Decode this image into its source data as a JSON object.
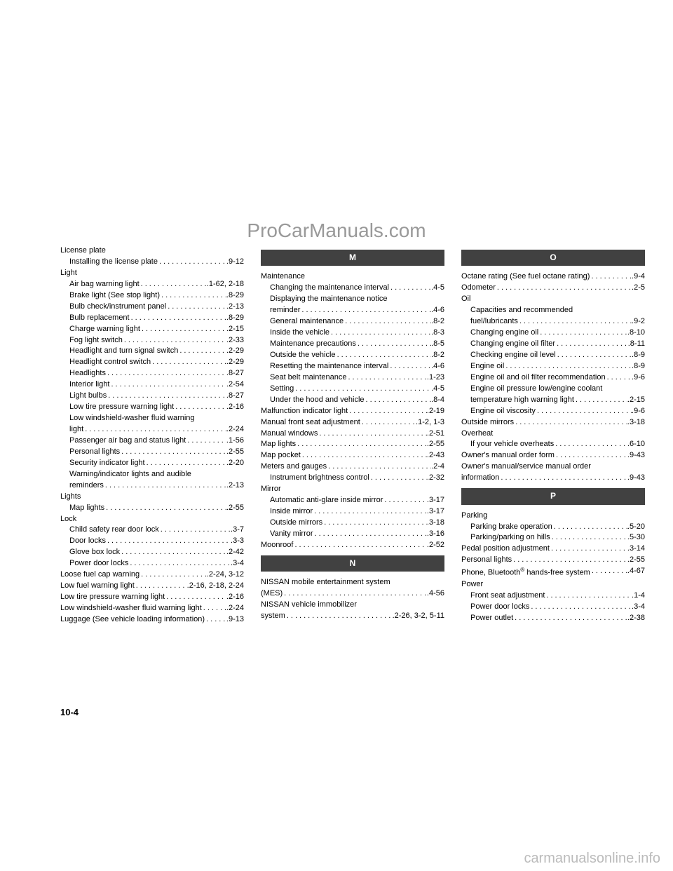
{
  "watermark": "ProCarManuals.com",
  "footer_watermark": "carmanualsonline.info",
  "page_number": "10-4",
  "columns": [
    {
      "items": [
        {
          "type": "heading",
          "text": "License plate"
        },
        {
          "type": "entry",
          "indent": true,
          "label": "Installing the license plate",
          "page": ".9-12"
        },
        {
          "type": "heading",
          "text": "Light"
        },
        {
          "type": "entry",
          "indent": true,
          "label": "Air bag warning light",
          "page": ".1-62, 2-18"
        },
        {
          "type": "entry",
          "indent": true,
          "label": "Brake light (See stop light)",
          "page": ".8-29"
        },
        {
          "type": "entry",
          "indent": true,
          "label": "Bulb check/instrument panel",
          "page": ".2-13"
        },
        {
          "type": "entry",
          "indent": true,
          "label": "Bulb replacement",
          "page": ".8-29"
        },
        {
          "type": "entry",
          "indent": true,
          "label": "Charge warning light",
          "page": ".2-15"
        },
        {
          "type": "entry",
          "indent": true,
          "label": "Fog light switch",
          "page": ".2-33"
        },
        {
          "type": "entry",
          "indent": true,
          "label": "Headlight and turn signal switch",
          "page": ".2-29"
        },
        {
          "type": "entry",
          "indent": true,
          "label": "Headlight control switch",
          "page": ".2-29"
        },
        {
          "type": "entry",
          "indent": true,
          "label": "Headlights",
          "page": ".8-27"
        },
        {
          "type": "entry",
          "indent": true,
          "label": "Interior light",
          "page": ".2-54"
        },
        {
          "type": "entry",
          "indent": true,
          "label": "Light bulbs",
          "page": ".8-27"
        },
        {
          "type": "entry",
          "indent": true,
          "label": "Low tire pressure warning light",
          "page": ".2-16"
        },
        {
          "type": "heading-indent",
          "text": "Low windshield-washer fluid warning"
        },
        {
          "type": "entry",
          "indent": true,
          "label": "light",
          "page": ".2-24"
        },
        {
          "type": "entry",
          "indent": true,
          "label": "Passenger air bag and status light",
          "page": ".1-56"
        },
        {
          "type": "entry",
          "indent": true,
          "label": "Personal lights",
          "page": ".2-55"
        },
        {
          "type": "entry",
          "indent": true,
          "label": "Security indicator light",
          "page": ".2-20"
        },
        {
          "type": "heading-indent",
          "text": "Warning/indicator lights and audible"
        },
        {
          "type": "entry",
          "indent": true,
          "label": "reminders",
          "page": ".2-13"
        },
        {
          "type": "heading",
          "text": "Lights"
        },
        {
          "type": "entry",
          "indent": true,
          "label": "Map lights",
          "page": ".2-55"
        },
        {
          "type": "heading",
          "text": "Lock"
        },
        {
          "type": "entry",
          "indent": true,
          "label": "Child safety rear door lock",
          "page": ".3-7"
        },
        {
          "type": "entry",
          "indent": true,
          "label": "Door locks",
          "page": ".3-3"
        },
        {
          "type": "entry",
          "indent": true,
          "label": "Glove box lock",
          "page": ".2-42"
        },
        {
          "type": "entry",
          "indent": true,
          "label": "Power door locks",
          "page": ".3-4"
        },
        {
          "type": "entry",
          "indent": false,
          "label": "Loose fuel cap warning",
          "page": ".2-24, 3-12"
        },
        {
          "type": "entry",
          "indent": false,
          "label": "Low fuel warning light",
          "page": ".2-16, 2-18, 2-24"
        },
        {
          "type": "entry",
          "indent": false,
          "label": "Low tire pressure warning light",
          "page": ".2-16"
        },
        {
          "type": "entry",
          "indent": false,
          "label": "Low windshield-washer fluid warning light",
          "page": ".2-24"
        },
        {
          "type": "entry",
          "indent": false,
          "label": "Luggage (See vehicle loading information)",
          "page": ".9-13"
        }
      ]
    },
    {
      "items": [
        {
          "type": "letter",
          "text": "M"
        },
        {
          "type": "heading",
          "text": "Maintenance"
        },
        {
          "type": "entry",
          "indent": true,
          "label": "Changing the maintenance interval",
          "page": ".4-5"
        },
        {
          "type": "heading-indent",
          "text": "Displaying the maintenance notice"
        },
        {
          "type": "entry",
          "indent": true,
          "label": "reminder",
          "page": ".4-6"
        },
        {
          "type": "entry",
          "indent": true,
          "label": "General maintenance",
          "page": ".8-2"
        },
        {
          "type": "entry",
          "indent": true,
          "label": "Inside the vehicle",
          "page": ".8-3"
        },
        {
          "type": "entry",
          "indent": true,
          "label": "Maintenance precautions",
          "page": ".8-5"
        },
        {
          "type": "entry",
          "indent": true,
          "label": "Outside the vehicle",
          "page": ".8-2"
        },
        {
          "type": "entry",
          "indent": true,
          "label": "Resetting the maintenance interval",
          "page": ".4-6"
        },
        {
          "type": "entry",
          "indent": true,
          "label": "Seat belt maintenance",
          "page": ".1-23"
        },
        {
          "type": "entry",
          "indent": true,
          "label": "Setting",
          "page": ".4-5"
        },
        {
          "type": "entry",
          "indent": true,
          "label": "Under the hood and vehicle",
          "page": ".8-4"
        },
        {
          "type": "entry",
          "indent": false,
          "label": "Malfunction indicator light",
          "page": ".2-19"
        },
        {
          "type": "entry",
          "indent": false,
          "label": "Manual front seat adjustment",
          "page": ".1-2, 1-3"
        },
        {
          "type": "entry",
          "indent": false,
          "label": "Manual windows",
          "page": ".2-51"
        },
        {
          "type": "entry",
          "indent": false,
          "label": "Map lights",
          "page": ".2-55"
        },
        {
          "type": "entry",
          "indent": false,
          "label": "Map pocket",
          "page": ".2-43"
        },
        {
          "type": "entry",
          "indent": false,
          "label": "Meters and gauges",
          "page": ".2-4"
        },
        {
          "type": "entry",
          "indent": true,
          "label": "Instrument brightness control",
          "page": ".2-32"
        },
        {
          "type": "heading",
          "text": "Mirror"
        },
        {
          "type": "entry",
          "indent": true,
          "label": "Automatic anti-glare inside mirror",
          "page": ".3-17"
        },
        {
          "type": "entry",
          "indent": true,
          "label": "Inside mirror",
          "page": ".3-17"
        },
        {
          "type": "entry",
          "indent": true,
          "label": "Outside mirrors",
          "page": ".3-18"
        },
        {
          "type": "entry",
          "indent": true,
          "label": "Vanity mirror",
          "page": ".3-16"
        },
        {
          "type": "entry",
          "indent": false,
          "label": "Moonroof",
          "page": ".2-52"
        },
        {
          "type": "letter",
          "text": "N"
        },
        {
          "type": "heading",
          "text": "NISSAN mobile entertainment system"
        },
        {
          "type": "entry",
          "indent": false,
          "label": "(MES)",
          "page": ".4-56"
        },
        {
          "type": "heading",
          "text": "NISSAN vehicle immobilizer"
        },
        {
          "type": "entry",
          "indent": false,
          "label": "system",
          "page": ".2-26, 3-2, 5-11"
        }
      ]
    },
    {
      "items": [
        {
          "type": "letter",
          "text": "O"
        },
        {
          "type": "entry",
          "indent": false,
          "label": "Octane rating (See fuel octane rating)",
          "page": ".9-4"
        },
        {
          "type": "entry",
          "indent": false,
          "label": "Odometer",
          "page": ".2-5"
        },
        {
          "type": "heading",
          "text": "Oil"
        },
        {
          "type": "heading-indent",
          "text": "Capacities and recommended"
        },
        {
          "type": "entry",
          "indent": true,
          "label": "fuel/lubricants",
          "page": ".9-2"
        },
        {
          "type": "entry",
          "indent": true,
          "label": "Changing engine oil",
          "page": ".8-10"
        },
        {
          "type": "entry",
          "indent": true,
          "label": "Changing engine oil filter",
          "page": ".8-11"
        },
        {
          "type": "entry",
          "indent": true,
          "label": "Checking engine oil level",
          "page": ".8-9"
        },
        {
          "type": "entry",
          "indent": true,
          "label": "Engine oil",
          "page": ".8-9"
        },
        {
          "type": "entry",
          "indent": true,
          "label": "Engine oil and oil filter recommendation",
          "page": ".9-6"
        },
        {
          "type": "heading-indent",
          "text": "Engine oil pressure low/engine coolant"
        },
        {
          "type": "entry",
          "indent": true,
          "label": "temperature high warning light",
          "page": ".2-15"
        },
        {
          "type": "entry",
          "indent": true,
          "label": "Engine oil viscosity",
          "page": ".9-6"
        },
        {
          "type": "entry",
          "indent": false,
          "label": "Outside mirrors",
          "page": ".3-18"
        },
        {
          "type": "heading",
          "text": "Overheat"
        },
        {
          "type": "entry",
          "indent": true,
          "label": "If your vehicle overheats",
          "page": ".6-10"
        },
        {
          "type": "entry",
          "indent": false,
          "label": "Owner's manual order form",
          "page": ".9-43"
        },
        {
          "type": "heading",
          "text": "Owner's manual/service manual order"
        },
        {
          "type": "entry",
          "indent": false,
          "label": "information",
          "page": ".9-43"
        },
        {
          "type": "letter",
          "text": "P"
        },
        {
          "type": "heading",
          "text": "Parking"
        },
        {
          "type": "entry",
          "indent": true,
          "label": "Parking brake operation",
          "page": ".5-20"
        },
        {
          "type": "entry",
          "indent": true,
          "label": "Parking/parking on hills",
          "page": ".5-30"
        },
        {
          "type": "entry",
          "indent": false,
          "label": "Pedal position adjustment",
          "page": ".3-14"
        },
        {
          "type": "entry",
          "indent": false,
          "label": "Personal lights",
          "page": ".2-55"
        },
        {
          "type": "entry",
          "indent": false,
          "label": "Phone, Bluetooth® hands-free system",
          "page": ".4-67"
        },
        {
          "type": "heading",
          "text": "Power"
        },
        {
          "type": "entry",
          "indent": true,
          "label": "Front seat adjustment",
          "page": ".1-4"
        },
        {
          "type": "entry",
          "indent": true,
          "label": "Power door locks",
          "page": ".3-4"
        },
        {
          "type": "entry",
          "indent": true,
          "label": "Power outlet",
          "page": ".2-38"
        }
      ]
    }
  ]
}
